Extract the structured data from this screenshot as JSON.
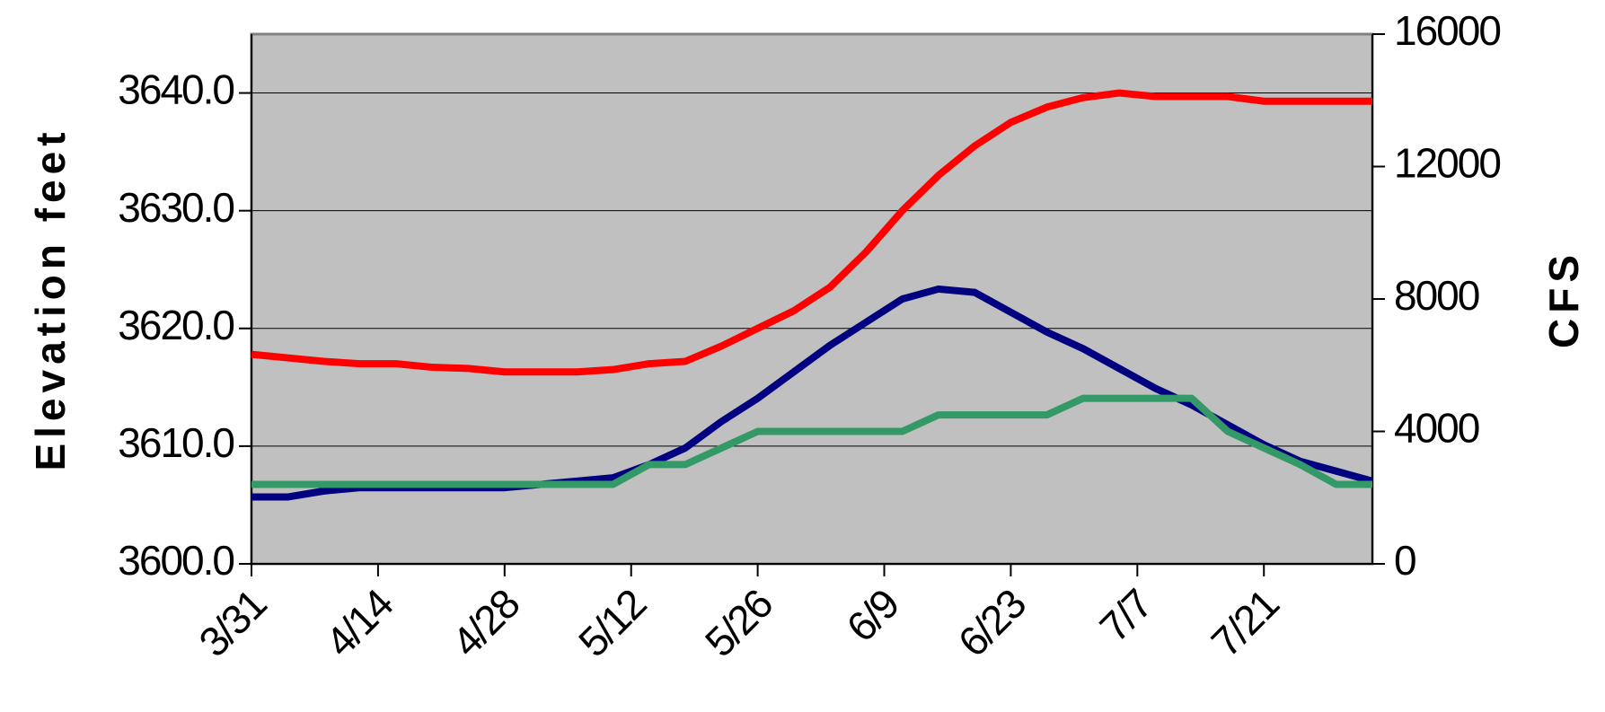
{
  "chart_data": {
    "type": "line",
    "y_label": "Elevation feet",
    "y2_label": "CFS",
    "x": [
      "3/31",
      "4/4",
      "4/8",
      "4/12",
      "4/16",
      "4/20",
      "4/24",
      "4/28",
      "5/2",
      "5/6",
      "5/10",
      "5/14",
      "5/18",
      "5/22",
      "5/26",
      "5/30",
      "6/3",
      "6/7",
      "6/11",
      "6/15",
      "6/19",
      "6/23",
      "6/27",
      "7/1",
      "7/5",
      "7/9",
      "7/13",
      "7/17",
      "7/21",
      "7/25",
      "7/29",
      "8/2"
    ],
    "xlim": [
      "3/31",
      "8/2"
    ],
    "xticks": [
      "3/31",
      "4/14",
      "4/28",
      "5/12",
      "5/26",
      "6/9",
      "6/23",
      "7/7",
      "7/21"
    ],
    "ylim": [
      3600,
      3645
    ],
    "yticks": [
      {
        "value": 3600,
        "label": "3600.0"
      },
      {
        "value": 3610,
        "label": "3610.0"
      },
      {
        "value": 3620,
        "label": "3620.0"
      },
      {
        "value": 3630,
        "label": "3630.0"
      },
      {
        "value": 3640,
        "label": "3640.0"
      }
    ],
    "y2lim": [
      0,
      16000
    ],
    "y2ticks": [
      0,
      4000,
      8000,
      12000,
      16000
    ],
    "grid": true,
    "background": "#c0c0c0",
    "series": [
      {
        "color": "#ff0000",
        "axis": "y",
        "values": [
          3617.8,
          3617.5,
          3617.2,
          3617.0,
          3617.0,
          3616.7,
          3616.6,
          3616.3,
          3616.3,
          3616.3,
          3616.5,
          3617.0,
          3617.2,
          3618.5,
          3620.0,
          3621.5,
          3623.5,
          3626.5,
          3630.0,
          3633.0,
          3635.5,
          3637.5,
          3638.8,
          3639.6,
          3640.0,
          3639.7,
          3639.7,
          3639.7,
          3639.3,
          3639.3,
          3639.3,
          3639.3
        ]
      },
      {
        "color": "#000080",
        "axis": "y2",
        "values": [
          2020,
          2020,
          2200,
          2300,
          2300,
          2300,
          2300,
          2300,
          2400,
          2500,
          2600,
          3000,
          3500,
          4300,
          5000,
          5800,
          6600,
          7300,
          8000,
          8300,
          8200,
          7600,
          7000,
          6500,
          5900,
          5300,
          4800,
          4200,
          3600,
          3100,
          2800,
          2500
        ]
      },
      {
        "color": "#339966",
        "axis": "y2",
        "values": [
          2400,
          2400,
          2400,
          2400,
          2400,
          2400,
          2400,
          2400,
          2400,
          2400,
          2400,
          3000,
          3000,
          3500,
          4000,
          4000,
          4000,
          4000,
          4000,
          4500,
          4500,
          4500,
          4500,
          5000,
          5000,
          5000,
          5000,
          4000,
          3500,
          3000,
          2400,
          2400
        ]
      }
    ]
  }
}
